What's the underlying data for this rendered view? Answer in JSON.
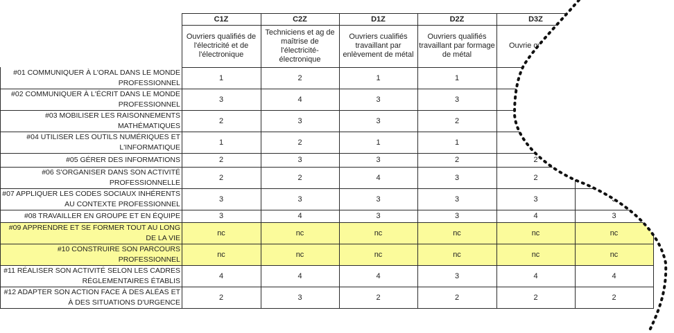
{
  "columns": [
    {
      "code": "C1Z",
      "desc": "Ouvriers qualifiés de l'électricité et de l'électronique"
    },
    {
      "code": "C2Z",
      "desc": "Techniciens et ag de maîtrise de l'électricité-électronique"
    },
    {
      "code": "D1Z",
      "desc": "Ouvriers cualifiés travaillant par enlèvement de métal"
    },
    {
      "code": "D2Z",
      "desc": "Ouvriers qualifiés travaillant par formage de métal"
    },
    {
      "code": "D3Z",
      "desc": "Ouvrie quali mé"
    },
    {
      "code": "",
      "desc": ""
    }
  ],
  "rows": [
    {
      "label": "#01 COMMUNIQUER À L'ORAL DANS LE MONDE PROFESSIONNEL",
      "values": [
        "1",
        "2",
        "1",
        "1",
        "",
        ""
      ],
      "highlight": false
    },
    {
      "label": "#02 COMMUNIQUER À L'ÉCRIT DANS LE MONDE PROFESSIONNEL",
      "values": [
        "3",
        "4",
        "3",
        "3",
        "",
        ""
      ],
      "highlight": false
    },
    {
      "label": "#03 MOBILISER LES RAISONNEMENTS MATHÉMATIQUES",
      "values": [
        "2",
        "3",
        "3",
        "2",
        "",
        ""
      ],
      "highlight": false
    },
    {
      "label": "#04 UTILISER LES OUTILS NUMÉRIQUES ET L'INFORMATIQUE",
      "values": [
        "1",
        "2",
        "1",
        "1",
        "",
        ""
      ],
      "highlight": false
    },
    {
      "label": "#05 GÉRER DES INFORMATIONS",
      "values": [
        "2",
        "3",
        "3",
        "2",
        "2",
        ""
      ],
      "highlight": false
    },
    {
      "label": "#06 S'ORGANISER DANS SON ACTIVITÉ PROFESSIONNELLE",
      "values": [
        "2",
        "2",
        "4",
        "3",
        "2",
        ""
      ],
      "highlight": false
    },
    {
      "label": "#07 APPLIQUER LES CODES SOCIAUX INHÉRENTS AU CONTEXTE PROFESSIONNEL",
      "values": [
        "3",
        "3",
        "3",
        "3",
        "3",
        "3"
      ],
      "highlight": false
    },
    {
      "label": "#08 TRAVAILLER EN GROUPE ET EN ÉQUIPE",
      "values": [
        "3",
        "4",
        "3",
        "3",
        "4",
        "3"
      ],
      "highlight": false
    },
    {
      "label": "#09 APPRENDRE ET SE FORMER TOUT AU LONG DE LA VIE",
      "values": [
        "nc",
        "nc",
        "nc",
        "nc",
        "nc",
        "nc"
      ],
      "highlight": true
    },
    {
      "label": "#10 CONSTRUIRE SON PARCOURS PROFESSIONNEL",
      "values": [
        "nc",
        "nc",
        "nc",
        "nc",
        "nc",
        "nc"
      ],
      "highlight": true
    },
    {
      "label": "#11 RÉALISER SON ACTIVITÉ SELON LES CADRES RÉGLEMENTAIRES ÉTABLIS",
      "values": [
        "4",
        "4",
        "4",
        "3",
        "4",
        "4"
      ],
      "highlight": false
    },
    {
      "label": "#12 ADAPTER SON ACTION FACE À DES ALÉAS ET À DES SITUATIONS D'URGENCE",
      "values": [
        "2",
        "3",
        "2",
        "2",
        "2",
        "2"
      ],
      "highlight": false
    }
  ],
  "colors": {
    "highlight": "#fbfb9b",
    "grid": "#2b2b2b",
    "curve": "#111111"
  }
}
